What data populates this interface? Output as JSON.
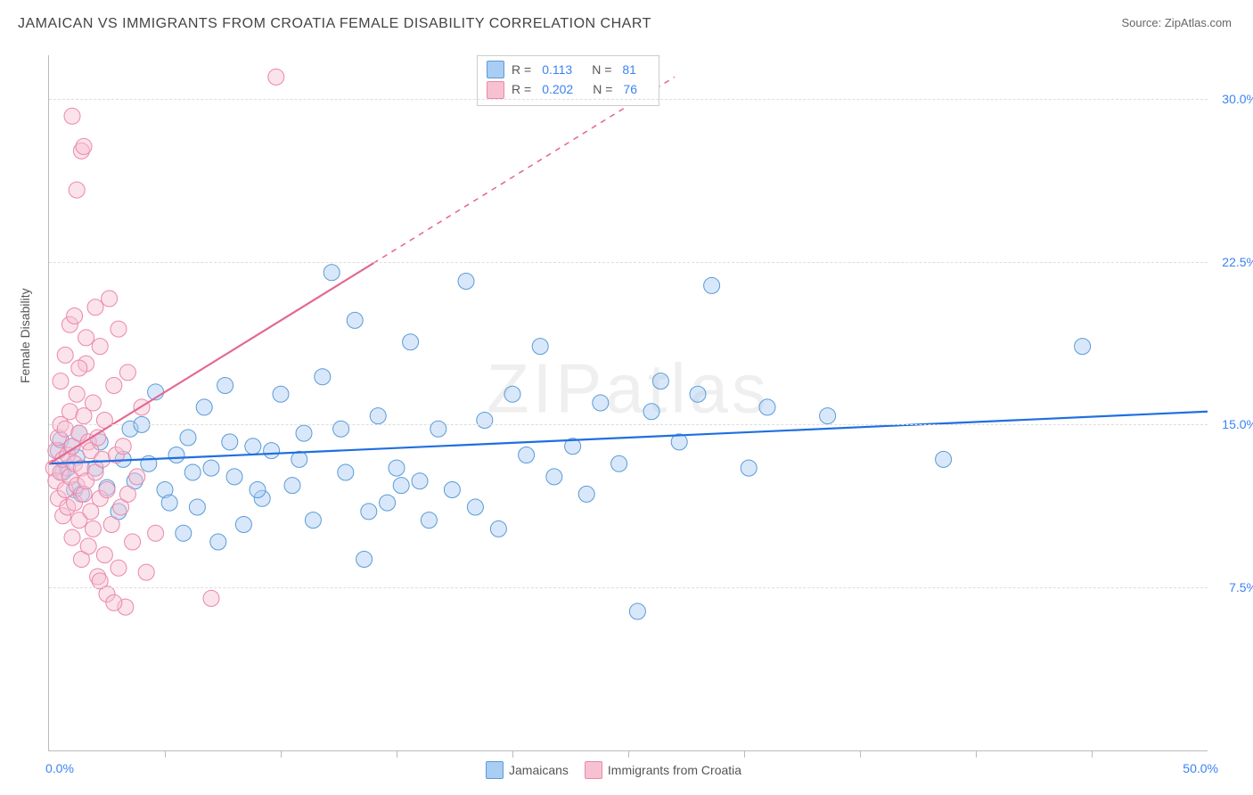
{
  "title": "JAMAICAN VS IMMIGRANTS FROM CROATIA FEMALE DISABILITY CORRELATION CHART",
  "source": "Source: ZipAtlas.com",
  "watermark": "ZIPatlas",
  "chart": {
    "type": "scatter",
    "y_axis_label": "Female Disability",
    "xlim": [
      0,
      50
    ],
    "ylim": [
      0,
      32
    ],
    "x_origin_label": "0.0%",
    "x_end_label": "50.0%",
    "y_ticks": [
      {
        "value": 7.5,
        "label": "7.5%"
      },
      {
        "value": 15.0,
        "label": "15.0%"
      },
      {
        "value": 22.5,
        "label": "22.5%"
      },
      {
        "value": 30.0,
        "label": "30.0%"
      }
    ],
    "x_tick_positions": [
      5,
      10,
      15,
      20,
      25,
      30,
      35,
      40,
      45
    ],
    "grid_color": "#dddddd",
    "axis_color": "#bbbbbb",
    "background_color": "#ffffff",
    "marker_radius": 9,
    "marker_opacity": 0.45,
    "trend_line_width": 2.2,
    "series": [
      {
        "name": "Jamaicans",
        "color_fill": "#a9cdf3",
        "color_stroke": "#5b9bd5",
        "trend_color": "#1f6fe0",
        "trend_dashed": false,
        "trend": {
          "x1": 0,
          "y1": 13.2,
          "x2": 50,
          "y2": 15.6
        },
        "R": "0.113",
        "N": "81",
        "points": [
          [
            0.4,
            13.8
          ],
          [
            0.5,
            14.3
          ],
          [
            0.6,
            12.8
          ],
          [
            0.8,
            13.0
          ],
          [
            1.0,
            14.0
          ],
          [
            1.1,
            12.0
          ],
          [
            1.2,
            13.5
          ],
          [
            1.3,
            14.6
          ],
          [
            1.4,
            11.8
          ],
          [
            2.0,
            13.0
          ],
          [
            2.2,
            14.2
          ],
          [
            2.5,
            12.1
          ],
          [
            3.0,
            11.0
          ],
          [
            3.2,
            13.4
          ],
          [
            3.5,
            14.8
          ],
          [
            3.7,
            12.4
          ],
          [
            4.0,
            15.0
          ],
          [
            4.3,
            13.2
          ],
          [
            4.6,
            16.5
          ],
          [
            5.0,
            12.0
          ],
          [
            5.2,
            11.4
          ],
          [
            5.5,
            13.6
          ],
          [
            5.8,
            10.0
          ],
          [
            6.0,
            14.4
          ],
          [
            6.4,
            11.2
          ],
          [
            6.7,
            15.8
          ],
          [
            7.0,
            13.0
          ],
          [
            7.3,
            9.6
          ],
          [
            7.6,
            16.8
          ],
          [
            8.0,
            12.6
          ],
          [
            8.4,
            10.4
          ],
          [
            8.8,
            14.0
          ],
          [
            9.2,
            11.6
          ],
          [
            9.6,
            13.8
          ],
          [
            10.0,
            16.4
          ],
          [
            10.5,
            12.2
          ],
          [
            11.0,
            14.6
          ],
          [
            11.4,
            10.6
          ],
          [
            11.8,
            17.2
          ],
          [
            12.2,
            22.0
          ],
          [
            12.8,
            12.8
          ],
          [
            13.2,
            19.8
          ],
          [
            13.6,
            8.8
          ],
          [
            13.8,
            11.0
          ],
          [
            14.2,
            15.4
          ],
          [
            14.6,
            11.4
          ],
          [
            15.0,
            13.0
          ],
          [
            15.6,
            18.8
          ],
          [
            16.0,
            12.4
          ],
          [
            16.4,
            10.6
          ],
          [
            16.8,
            14.8
          ],
          [
            17.4,
            12.0
          ],
          [
            18.0,
            21.6
          ],
          [
            18.4,
            11.2
          ],
          [
            18.8,
            15.2
          ],
          [
            19.4,
            10.2
          ],
          [
            20.0,
            16.4
          ],
          [
            20.6,
            13.6
          ],
          [
            21.2,
            18.6
          ],
          [
            21.8,
            12.6
          ],
          [
            22.6,
            14.0
          ],
          [
            23.2,
            11.8
          ],
          [
            23.8,
            16.0
          ],
          [
            24.6,
            13.2
          ],
          [
            25.4,
            6.4
          ],
          [
            26.0,
            15.6
          ],
          [
            26.4,
            17.0
          ],
          [
            27.2,
            14.2
          ],
          [
            28.0,
            16.4
          ],
          [
            28.6,
            21.4
          ],
          [
            30.2,
            13.0
          ],
          [
            31.0,
            15.8
          ],
          [
            33.6,
            15.4
          ],
          [
            38.6,
            13.4
          ],
          [
            44.6,
            18.6
          ],
          [
            6.2,
            12.8
          ],
          [
            7.8,
            14.2
          ],
          [
            9.0,
            12.0
          ],
          [
            10.8,
            13.4
          ],
          [
            12.6,
            14.8
          ],
          [
            15.2,
            12.2
          ]
        ]
      },
      {
        "name": "Immigrants from Croatia",
        "color_fill": "#f6c2d2",
        "color_stroke": "#ec87a8",
        "trend_color": "#e4688f",
        "trend_dashed_after": 14,
        "trend": {
          "x1": 0,
          "y1": 13.2,
          "x2": 27,
          "y2": 31.0
        },
        "R": "0.202",
        "N": "76",
        "points": [
          [
            0.2,
            13.0
          ],
          [
            0.3,
            12.4
          ],
          [
            0.3,
            13.8
          ],
          [
            0.4,
            11.6
          ],
          [
            0.4,
            14.4
          ],
          [
            0.5,
            12.8
          ],
          [
            0.5,
            15.0
          ],
          [
            0.6,
            10.8
          ],
          [
            0.6,
            13.4
          ],
          [
            0.7,
            12.0
          ],
          [
            0.7,
            14.8
          ],
          [
            0.8,
            11.2
          ],
          [
            0.8,
            13.6
          ],
          [
            0.9,
            15.6
          ],
          [
            0.9,
            12.6
          ],
          [
            1.0,
            9.8
          ],
          [
            1.0,
            14.0
          ],
          [
            1.1,
            11.4
          ],
          [
            1.1,
            13.2
          ],
          [
            1.2,
            16.4
          ],
          [
            1.2,
            12.2
          ],
          [
            1.3,
            10.6
          ],
          [
            1.3,
            14.6
          ],
          [
            1.4,
            8.8
          ],
          [
            1.4,
            13.0
          ],
          [
            1.5,
            11.8
          ],
          [
            1.5,
            15.4
          ],
          [
            1.6,
            17.8
          ],
          [
            1.6,
            12.4
          ],
          [
            1.7,
            9.4
          ],
          [
            1.7,
            14.2
          ],
          [
            1.8,
            11.0
          ],
          [
            1.8,
            13.8
          ],
          [
            1.9,
            16.0
          ],
          [
            1.9,
            10.2
          ],
          [
            2.0,
            20.4
          ],
          [
            2.0,
            12.8
          ],
          [
            2.1,
            8.0
          ],
          [
            2.1,
            14.4
          ],
          [
            2.2,
            11.6
          ],
          [
            2.2,
            18.6
          ],
          [
            2.3,
            13.4
          ],
          [
            2.4,
            9.0
          ],
          [
            2.4,
            15.2
          ],
          [
            2.5,
            7.2
          ],
          [
            2.5,
            12.0
          ],
          [
            2.6,
            20.8
          ],
          [
            2.7,
            10.4
          ],
          [
            2.8,
            16.8
          ],
          [
            2.9,
            13.6
          ],
          [
            3.0,
            8.4
          ],
          [
            3.0,
            19.4
          ],
          [
            3.1,
            11.2
          ],
          [
            3.2,
            14.0
          ],
          [
            3.3,
            6.6
          ],
          [
            3.4,
            17.4
          ],
          [
            3.6,
            9.6
          ],
          [
            3.8,
            12.6
          ],
          [
            4.0,
            15.8
          ],
          [
            4.2,
            8.2
          ],
          [
            4.6,
            10.0
          ],
          [
            1.0,
            29.2
          ],
          [
            1.4,
            27.6
          ],
          [
            1.5,
            27.8
          ],
          [
            1.2,
            25.8
          ],
          [
            9.8,
            31.0
          ],
          [
            7.0,
            7.0
          ],
          [
            0.5,
            17.0
          ],
          [
            0.7,
            18.2
          ],
          [
            0.9,
            19.6
          ],
          [
            1.1,
            20.0
          ],
          [
            1.3,
            17.6
          ],
          [
            1.6,
            19.0
          ],
          [
            2.2,
            7.8
          ],
          [
            2.8,
            6.8
          ],
          [
            3.4,
            11.8
          ]
        ]
      }
    ],
    "legend_top": {
      "rows": [
        {
          "swatch_fill": "#a9cdf3",
          "swatch_stroke": "#5b9bd5",
          "r_label": "R =",
          "r_value": "0.113",
          "n_label": "N =",
          "n_value": "81"
        },
        {
          "swatch_fill": "#f6c2d2",
          "swatch_stroke": "#ec87a8",
          "r_label": "R =",
          "r_value": "0.202",
          "n_label": "N =",
          "n_value": "76"
        }
      ]
    },
    "legend_bottom": [
      {
        "swatch_fill": "#a9cdf3",
        "swatch_stroke": "#5b9bd5",
        "label": "Jamaicans"
      },
      {
        "swatch_fill": "#f6c2d2",
        "swatch_stroke": "#ec87a8",
        "label": "Immigrants from Croatia"
      }
    ]
  }
}
